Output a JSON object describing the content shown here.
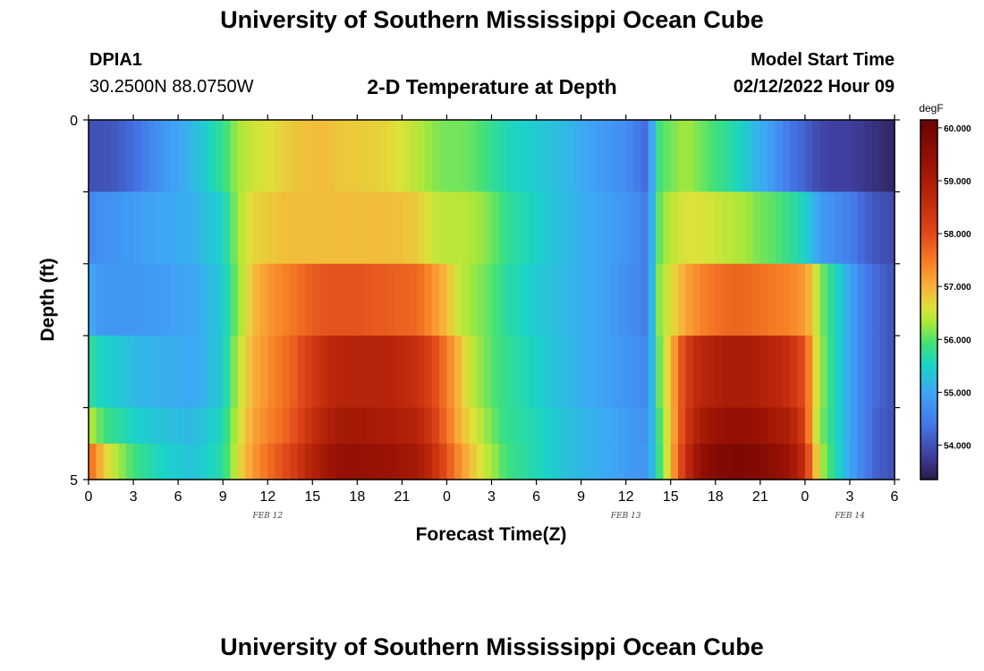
{
  "header": {
    "title": "University of Southern Mississippi Ocean Cube",
    "station_id": "DPIA1",
    "coords": "30.2500N  88.0750W",
    "subtitle": "2-D Temperature at Depth",
    "model_start_label": "Model Start Time",
    "model_start_value": "02/12/2022 Hour 09"
  },
  "footer": {
    "title": "University of Southern Mississippi Ocean Cube"
  },
  "chart_data": {
    "type": "heatmap",
    "title": "2-D Temperature at Depth",
    "xlabel": "Forecast Time(Z)",
    "ylabel": "Depth (ft)",
    "xlim": [
      0,
      54
    ],
    "ylim": [
      0,
      5
    ],
    "x_ticks": [
      0,
      3,
      6,
      9,
      12,
      15,
      18,
      21,
      24,
      27,
      30,
      33,
      36,
      39,
      42,
      45,
      48,
      51,
      54
    ],
    "x_tick_labels": [
      "0",
      "3",
      "6",
      "9",
      "12",
      "15",
      "18",
      "21",
      "0",
      "3",
      "6",
      "9",
      "12",
      "15",
      "18",
      "21",
      "0",
      "3",
      "6"
    ],
    "y_tick_labels": [
      "0",
      "5"
    ],
    "date_labels": [
      {
        "x": 12,
        "label": "FEB 12"
      },
      {
        "x": 36,
        "label": "FEB 13"
      },
      {
        "x": 51,
        "label": "FEB 14"
      }
    ],
    "depth_rows": [
      0,
      1,
      2,
      3,
      4,
      4.5
    ],
    "time_points": [
      0,
      0.5,
      1,
      2,
      3,
      5,
      7,
      9,
      10,
      11,
      12,
      13.5,
      15,
      16,
      17,
      18,
      20,
      22,
      23,
      24,
      25,
      26,
      27,
      28,
      30,
      32,
      34,
      35,
      36,
      37,
      37.5,
      38,
      38.5,
      39,
      40,
      41,
      42,
      43,
      44,
      45,
      46,
      47,
      48,
      48.5,
      49,
      50,
      51,
      52,
      53,
      54
    ],
    "temperature": [
      [
        54.0,
        54.0,
        54.0,
        54.1,
        54.3,
        54.8,
        55.2,
        55.8,
        56.3,
        56.5,
        56.6,
        56.8,
        56.9,
        56.9,
        56.8,
        56.8,
        56.7,
        56.4,
        56.2,
        56.1,
        56.1,
        56.0,
        55.8,
        55.6,
        55.4,
        55.2,
        54.9,
        54.8,
        54.7,
        54.4,
        54.2,
        55.8,
        56.0,
        56.1,
        56.3,
        56.1,
        55.9,
        55.7,
        55.4,
        55.1,
        54.8,
        54.4,
        54.2,
        54.0,
        53.9,
        53.8,
        53.8,
        53.7,
        53.6,
        53.5
      ],
      [
        54.6,
        54.7,
        54.7,
        54.8,
        54.9,
        55.0,
        55.1,
        55.5,
        56.3,
        56.7,
        56.8,
        56.9,
        56.9,
        56.9,
        56.9,
        56.9,
        56.9,
        56.8,
        56.5,
        56.4,
        56.4,
        56.3,
        56.1,
        55.8,
        55.5,
        55.2,
        55.0,
        54.9,
        54.8,
        54.6,
        54.4,
        55.9,
        56.2,
        56.4,
        56.6,
        56.6,
        56.5,
        56.4,
        56.3,
        56.1,
        56.0,
        55.8,
        55.5,
        55.2,
        54.9,
        54.7,
        54.5,
        54.2,
        54.0,
        53.9
      ],
      [
        55.1,
        54.9,
        54.8,
        54.8,
        54.8,
        54.9,
        55.0,
        55.4,
        56.2,
        56.9,
        57.2,
        57.5,
        57.8,
        57.9,
        57.9,
        57.9,
        57.8,
        57.7,
        57.3,
        56.9,
        56.4,
        56.2,
        56.0,
        55.7,
        55.4,
        55.2,
        55.0,
        54.9,
        54.7,
        54.6,
        54.4,
        56.0,
        56.4,
        56.6,
        57.1,
        57.4,
        57.6,
        57.7,
        57.7,
        57.6,
        57.5,
        57.4,
        57.2,
        56.8,
        56.2,
        55.6,
        55.0,
        54.5,
        54.2,
        54.0
      ],
      [
        55.8,
        55.6,
        55.5,
        55.4,
        55.2,
        55.1,
        55.0,
        55.4,
        56.4,
        57.0,
        57.3,
        57.7,
        58.3,
        58.6,
        58.8,
        58.8,
        58.8,
        58.5,
        58.1,
        57.5,
        56.8,
        56.3,
        56.0,
        55.8,
        55.5,
        55.2,
        55.0,
        54.9,
        54.8,
        54.7,
        54.6,
        55.8,
        56.4,
        56.9,
        58.2,
        58.7,
        58.9,
        59.0,
        59.0,
        58.9,
        58.7,
        58.5,
        57.9,
        57.0,
        56.3,
        55.6,
        55.0,
        54.5,
        54.2,
        54.0
      ],
      [
        56.4,
        56.2,
        55.9,
        55.7,
        55.5,
        55.3,
        55.2,
        55.6,
        56.5,
        57.1,
        57.4,
        57.8,
        58.5,
        58.9,
        59.1,
        59.1,
        59.0,
        58.8,
        58.3,
        57.6,
        56.9,
        56.5,
        56.1,
        55.8,
        55.6,
        55.3,
        55.1,
        55.0,
        54.9,
        54.8,
        54.7,
        55.6,
        56.3,
        56.8,
        58.3,
        59.0,
        59.3,
        59.4,
        59.4,
        59.3,
        59.1,
        58.9,
        58.2,
        56.8,
        56.2,
        55.6,
        55.0,
        54.5,
        54.1,
        54.0
      ],
      [
        57.7,
        57.3,
        56.8,
        56.3,
        55.9,
        55.5,
        55.3,
        55.7,
        56.6,
        57.2,
        57.6,
        58.1,
        58.8,
        59.2,
        59.4,
        59.4,
        59.3,
        59.1,
        58.6,
        57.9,
        57.2,
        56.7,
        56.3,
        55.9,
        55.6,
        55.3,
        55.1,
        55.0,
        54.9,
        54.8,
        54.8,
        55.6,
        56.2,
        56.9,
        58.5,
        59.4,
        59.7,
        59.8,
        59.8,
        59.7,
        59.5,
        59.2,
        58.5,
        57.3,
        56.4,
        55.7,
        55.0,
        54.5,
        54.1,
        54.0
      ]
    ],
    "color_scale": {
      "min": 53.35,
      "max": 60.15,
      "ticks": [
        60.0,
        59.0,
        58.0,
        57.0,
        56.0,
        55.0,
        54.0
      ],
      "tick_labels": [
        "60.000",
        "59.000",
        "58.000",
        "57.000",
        "56.000",
        "55.000",
        "54.000"
      ],
      "unit": "degF",
      "stops": [
        {
          "v": 53.35,
          "c": "#2a1a4a"
        },
        {
          "v": 53.8,
          "c": "#3e3f9e"
        },
        {
          "v": 54.4,
          "c": "#4577e8"
        },
        {
          "v": 55.0,
          "c": "#3fa6f6"
        },
        {
          "v": 55.5,
          "c": "#1ad3c8"
        },
        {
          "v": 55.9,
          "c": "#3de07c"
        },
        {
          "v": 56.3,
          "c": "#a8e83a"
        },
        {
          "v": 56.6,
          "c": "#dde23a"
        },
        {
          "v": 57.0,
          "c": "#f9b03a"
        },
        {
          "v": 57.5,
          "c": "#f67a24"
        },
        {
          "v": 58.0,
          "c": "#e0491a"
        },
        {
          "v": 58.6,
          "c": "#c02a0c"
        },
        {
          "v": 59.3,
          "c": "#9a1205"
        },
        {
          "v": 60.15,
          "c": "#6b0303"
        }
      ]
    }
  }
}
